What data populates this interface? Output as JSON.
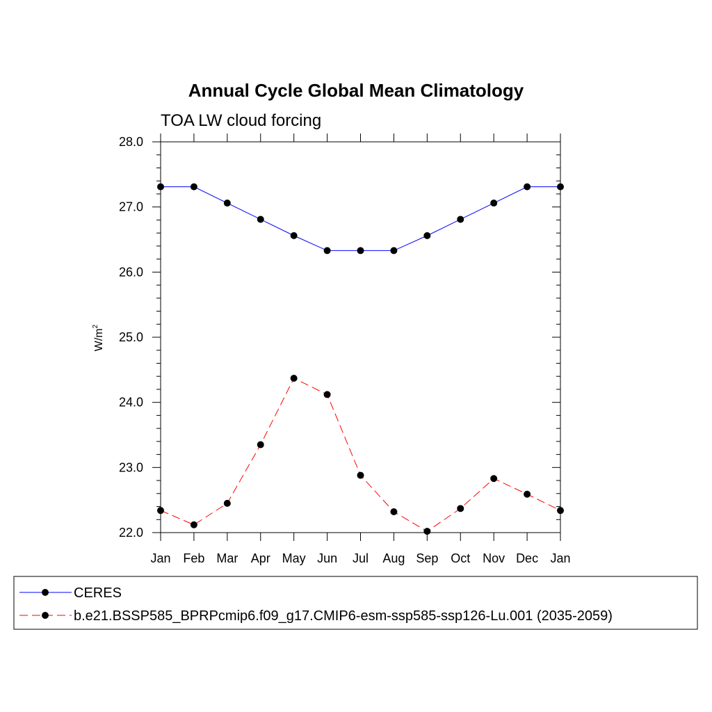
{
  "chart_data": {
    "type": "line",
    "title": "Annual Cycle Global Mean Climatology",
    "subtitle": "TOA LW cloud forcing",
    "ylabel": "W/m",
    "ylabel_superscript": "2",
    "categories": [
      "Jan",
      "Feb",
      "Mar",
      "Apr",
      "May",
      "Jun",
      "Jul",
      "Aug",
      "Sep",
      "Oct",
      "Nov",
      "Dec",
      "Jan"
    ],
    "ylim": [
      22.0,
      28.0
    ],
    "yticks": [
      "22.0",
      "23.0",
      "24.0",
      "25.0",
      "26.0",
      "27.0",
      "28.0"
    ],
    "grid": false,
    "legend_position": "bottom",
    "series": [
      {
        "name": "CERES",
        "color": "#0000ff",
        "dash": "solid",
        "marker": "circle",
        "values": [
          27.31,
          27.31,
          27.06,
          26.81,
          26.56,
          26.33,
          26.33,
          26.33,
          26.56,
          26.81,
          27.06,
          27.31,
          27.31
        ]
      },
      {
        "name": "b.e21.BSSP585_BPRPcmip6.f09_g17.CMIP6-esm-ssp585-ssp126-Lu.001 (2035-2059)",
        "color": "#ff0000",
        "dash": "dashed",
        "marker": "circle",
        "values": [
          22.34,
          22.12,
          22.45,
          23.35,
          24.37,
          24.12,
          22.88,
          22.32,
          22.02,
          22.37,
          22.83,
          22.59,
          22.34
        ]
      }
    ]
  }
}
